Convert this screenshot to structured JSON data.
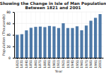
{
  "chart_data": {
    "type": "bar",
    "title": "Showing the Change in Isle of Man Population",
    "subtitle": "Between 1821 and 2001",
    "x_label": "Year",
    "y_label": "Population (Thousands)",
    "categories": [
      "1821",
      "1831",
      "1841",
      "1851",
      "1861",
      "1871",
      "1881",
      "1891",
      "1901",
      "1911",
      "1921",
      "1931",
      "1941",
      "1951",
      "1961",
      "1971",
      "1981",
      "1991",
      "2001"
    ],
    "values": [
      40.1,
      41.2,
      47.9,
      52.4,
      54.0,
      54.5,
      53.6,
      55.6,
      54.8,
      52.0,
      60.3,
      52.0,
      52.0,
      55.0,
      48.1,
      56.3,
      64.7,
      69.8,
      76.3
    ],
    "ylim": [
      0,
      80
    ],
    "yticks": [
      0,
      20,
      40,
      60,
      80
    ],
    "grid": true
  }
}
